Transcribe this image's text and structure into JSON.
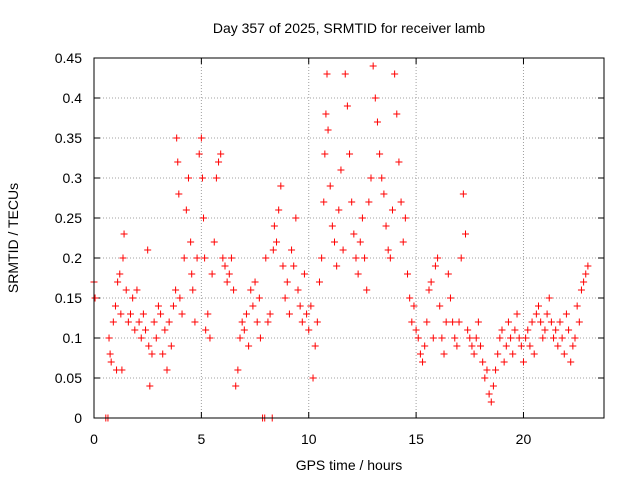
{
  "chart_data": {
    "type": "scatter",
    "title": "Day 357 of 2025, SRMTID for receiver lamb",
    "xlabel": "GPS time / hours",
    "ylabel": "SRMTID / TECUs",
    "xlim": [
      0,
      23.75
    ],
    "ylim": [
      0,
      0.45
    ],
    "x_ticks": [
      0,
      5,
      10,
      15,
      20
    ],
    "x_tick_labels": [
      "0",
      "5",
      "10",
      "15",
      "20"
    ],
    "y_ticks": [
      0,
      0.05,
      0.1,
      0.15,
      0.2,
      0.25,
      0.3,
      0.35,
      0.4,
      0.45
    ],
    "y_tick_labels": [
      "0",
      "0.05",
      "0.1",
      "0.15",
      "0.2",
      "0.25",
      "0.3",
      "0.35",
      "0.4",
      "0.45"
    ],
    "grid": true,
    "marker": "+",
    "color": "#ff0000",
    "series": [
      {
        "name": "SRMTID",
        "points": [
          [
            0.0,
            0.17
          ],
          [
            0.05,
            0.15
          ],
          [
            0.55,
            0.0
          ],
          [
            0.65,
            0.0
          ],
          [
            0.7,
            0.1
          ],
          [
            0.75,
            0.08
          ],
          [
            0.8,
            0.07
          ],
          [
            0.9,
            0.12
          ],
          [
            1.0,
            0.14
          ],
          [
            1.05,
            0.06
          ],
          [
            1.1,
            0.17
          ],
          [
            1.2,
            0.18
          ],
          [
            1.25,
            0.13
          ],
          [
            1.3,
            0.06
          ],
          [
            1.35,
            0.2
          ],
          [
            1.4,
            0.23
          ],
          [
            1.5,
            0.16
          ],
          [
            1.6,
            0.12
          ],
          [
            1.7,
            0.13
          ],
          [
            1.8,
            0.15
          ],
          [
            1.9,
            0.11
          ],
          [
            2.0,
            0.16
          ],
          [
            2.1,
            0.12
          ],
          [
            2.2,
            0.1
          ],
          [
            2.3,
            0.13
          ],
          [
            2.4,
            0.11
          ],
          [
            2.5,
            0.21
          ],
          [
            2.55,
            0.09
          ],
          [
            2.6,
            0.04
          ],
          [
            2.7,
            0.08
          ],
          [
            2.8,
            0.12
          ],
          [
            2.9,
            0.1
          ],
          [
            3.0,
            0.14
          ],
          [
            3.1,
            0.13
          ],
          [
            3.2,
            0.08
          ],
          [
            3.3,
            0.11
          ],
          [
            3.4,
            0.06
          ],
          [
            3.5,
            0.12
          ],
          [
            3.6,
            0.09
          ],
          [
            3.7,
            0.14
          ],
          [
            3.8,
            0.16
          ],
          [
            3.85,
            0.35
          ],
          [
            3.9,
            0.32
          ],
          [
            3.95,
            0.28
          ],
          [
            4.0,
            0.15
          ],
          [
            4.1,
            0.13
          ],
          [
            4.2,
            0.2
          ],
          [
            4.3,
            0.26
          ],
          [
            4.4,
            0.3
          ],
          [
            4.5,
            0.22
          ],
          [
            4.55,
            0.18
          ],
          [
            4.6,
            0.16
          ],
          [
            4.7,
            0.12
          ],
          [
            4.8,
            0.2
          ],
          [
            4.9,
            0.33
          ],
          [
            5.0,
            0.35
          ],
          [
            5.05,
            0.3
          ],
          [
            5.1,
            0.25
          ],
          [
            5.15,
            0.2
          ],
          [
            5.2,
            0.11
          ],
          [
            5.3,
            0.13
          ],
          [
            5.4,
            0.1
          ],
          [
            5.5,
            0.18
          ],
          [
            5.6,
            0.22
          ],
          [
            5.7,
            0.3
          ],
          [
            5.8,
            0.32
          ],
          [
            5.9,
            0.33
          ],
          [
            6.0,
            0.2
          ],
          [
            6.1,
            0.19
          ],
          [
            6.2,
            0.17
          ],
          [
            6.3,
            0.18
          ],
          [
            6.4,
            0.2
          ],
          [
            6.5,
            0.16
          ],
          [
            6.6,
            0.04
          ],
          [
            6.7,
            0.06
          ],
          [
            6.8,
            0.1
          ],
          [
            6.9,
            0.12
          ],
          [
            7.0,
            0.11
          ],
          [
            7.1,
            0.13
          ],
          [
            7.2,
            0.09
          ],
          [
            7.3,
            0.16
          ],
          [
            7.4,
            0.14
          ],
          [
            7.5,
            0.17
          ],
          [
            7.6,
            0.12
          ],
          [
            7.7,
            0.15
          ],
          [
            7.75,
            0.1
          ],
          [
            7.85,
            0.0
          ],
          [
            7.95,
            0.0
          ],
          [
            8.0,
            0.2
          ],
          [
            8.1,
            0.12
          ],
          [
            8.2,
            0.13
          ],
          [
            8.3,
            0.0
          ],
          [
            8.35,
            0.21
          ],
          [
            8.4,
            0.24
          ],
          [
            8.5,
            0.22
          ],
          [
            8.6,
            0.26
          ],
          [
            8.7,
            0.29
          ],
          [
            8.8,
            0.19
          ],
          [
            8.9,
            0.15
          ],
          [
            9.0,
            0.17
          ],
          [
            9.1,
            0.13
          ],
          [
            9.2,
            0.21
          ],
          [
            9.3,
            0.19
          ],
          [
            9.4,
            0.25
          ],
          [
            9.5,
            0.16
          ],
          [
            9.6,
            0.14
          ],
          [
            9.7,
            0.12
          ],
          [
            9.8,
            0.18
          ],
          [
            9.9,
            0.13
          ],
          [
            10.0,
            0.11
          ],
          [
            10.1,
            0.14
          ],
          [
            10.2,
            0.05
          ],
          [
            10.3,
            0.09
          ],
          [
            10.4,
            0.12
          ],
          [
            10.5,
            0.17
          ],
          [
            10.6,
            0.2
          ],
          [
            10.7,
            0.27
          ],
          [
            10.75,
            0.33
          ],
          [
            10.8,
            0.38
          ],
          [
            10.85,
            0.43
          ],
          [
            10.9,
            0.36
          ],
          [
            11.0,
            0.29
          ],
          [
            11.1,
            0.24
          ],
          [
            11.2,
            0.22
          ],
          [
            11.3,
            0.19
          ],
          [
            11.4,
            0.26
          ],
          [
            11.5,
            0.31
          ],
          [
            11.6,
            0.21
          ],
          [
            11.7,
            0.43
          ],
          [
            11.8,
            0.39
          ],
          [
            11.9,
            0.33
          ],
          [
            12.0,
            0.27
          ],
          [
            12.1,
            0.23
          ],
          [
            12.2,
            0.2
          ],
          [
            12.3,
            0.18
          ],
          [
            12.4,
            0.22
          ],
          [
            12.5,
            0.25
          ],
          [
            12.6,
            0.2
          ],
          [
            12.7,
            0.16
          ],
          [
            12.8,
            0.27
          ],
          [
            12.9,
            0.3
          ],
          [
            13.0,
            0.44
          ],
          [
            13.1,
            0.4
          ],
          [
            13.2,
            0.37
          ],
          [
            13.3,
            0.33
          ],
          [
            13.4,
            0.3
          ],
          [
            13.5,
            0.28
          ],
          [
            13.6,
            0.24
          ],
          [
            13.7,
            0.21
          ],
          [
            13.8,
            0.2
          ],
          [
            13.9,
            0.26
          ],
          [
            14.0,
            0.43
          ],
          [
            14.1,
            0.38
          ],
          [
            14.2,
            0.32
          ],
          [
            14.3,
            0.27
          ],
          [
            14.4,
            0.22
          ],
          [
            14.5,
            0.25
          ],
          [
            14.6,
            0.18
          ],
          [
            14.7,
            0.15
          ],
          [
            14.8,
            0.12
          ],
          [
            14.9,
            0.14
          ],
          [
            15.0,
            0.11
          ],
          [
            15.1,
            0.1
          ],
          [
            15.2,
            0.08
          ],
          [
            15.3,
            0.07
          ],
          [
            15.4,
            0.09
          ],
          [
            15.5,
            0.12
          ],
          [
            15.6,
            0.16
          ],
          [
            15.7,
            0.17
          ],
          [
            15.8,
            0.1
          ],
          [
            15.9,
            0.19
          ],
          [
            16.0,
            0.2
          ],
          [
            16.1,
            0.14
          ],
          [
            16.2,
            0.1
          ],
          [
            16.3,
            0.08
          ],
          [
            16.4,
            0.12
          ],
          [
            16.5,
            0.18
          ],
          [
            16.6,
            0.15
          ],
          [
            16.7,
            0.12
          ],
          [
            16.8,
            0.1
          ],
          [
            16.9,
            0.09
          ],
          [
            17.0,
            0.12
          ],
          [
            17.1,
            0.2
          ],
          [
            17.2,
            0.28
          ],
          [
            17.3,
            0.23
          ],
          [
            17.4,
            0.11
          ],
          [
            17.5,
            0.1
          ],
          [
            17.6,
            0.09
          ],
          [
            17.7,
            0.08
          ],
          [
            17.8,
            0.1
          ],
          [
            17.9,
            0.12
          ],
          [
            18.0,
            0.09
          ],
          [
            18.1,
            0.07
          ],
          [
            18.2,
            0.05
          ],
          [
            18.3,
            0.06
          ],
          [
            18.4,
            0.03
          ],
          [
            18.5,
            0.02
          ],
          [
            18.6,
            0.04
          ],
          [
            18.7,
            0.06
          ],
          [
            18.8,
            0.08
          ],
          [
            18.9,
            0.1
          ],
          [
            19.0,
            0.11
          ],
          [
            19.1,
            0.07
          ],
          [
            19.2,
            0.09
          ],
          [
            19.3,
            0.12
          ],
          [
            19.4,
            0.1
          ],
          [
            19.5,
            0.08
          ],
          [
            19.6,
            0.11
          ],
          [
            19.7,
            0.13
          ],
          [
            19.8,
            0.1
          ],
          [
            19.9,
            0.09
          ],
          [
            20.0,
            0.07
          ],
          [
            20.1,
            0.1
          ],
          [
            20.2,
            0.11
          ],
          [
            20.3,
            0.09
          ],
          [
            20.4,
            0.12
          ],
          [
            20.5,
            0.08
          ],
          [
            20.6,
            0.13
          ],
          [
            20.7,
            0.14
          ],
          [
            20.8,
            0.12
          ],
          [
            20.9,
            0.1
          ],
          [
            21.0,
            0.11
          ],
          [
            21.1,
            0.13
          ],
          [
            21.2,
            0.15
          ],
          [
            21.3,
            0.12
          ],
          [
            21.4,
            0.1
          ],
          [
            21.5,
            0.11
          ],
          [
            21.6,
            0.09
          ],
          [
            21.7,
            0.12
          ],
          [
            21.8,
            0.1
          ],
          [
            21.9,
            0.08
          ],
          [
            22.0,
            0.13
          ],
          [
            22.1,
            0.11
          ],
          [
            22.2,
            0.07
          ],
          [
            22.3,
            0.09
          ],
          [
            22.4,
            0.1
          ],
          [
            22.5,
            0.14
          ],
          [
            22.6,
            0.12
          ],
          [
            22.7,
            0.16
          ],
          [
            22.8,
            0.17
          ],
          [
            22.9,
            0.18
          ],
          [
            23.0,
            0.19
          ]
        ]
      }
    ]
  }
}
